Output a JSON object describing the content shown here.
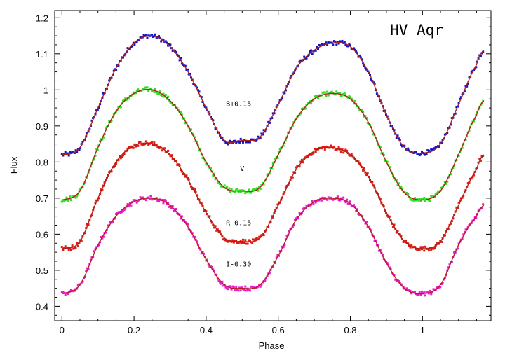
{
  "chart_data": {
    "type": "scatter",
    "title": "HV Aqr",
    "xlabel": "Phase",
    "ylabel": "Flux",
    "xlim": [
      -0.02,
      1.19
    ],
    "ylim": [
      0.36,
      1.22
    ],
    "x_ticks": [
      "0",
      "0.2",
      "0.4",
      "0.6",
      "0.8",
      "1"
    ],
    "x_tick_values": [
      0,
      0.2,
      0.4,
      0.6,
      0.8,
      1.0
    ],
    "y_ticks": [
      "0.4",
      "0.5",
      "0.6",
      "0.7",
      "0.8",
      "0.9",
      "1",
      "1.1",
      "1.2"
    ],
    "y_tick_values": [
      0.4,
      0.5,
      0.6,
      0.7,
      0.8,
      0.9,
      1.0,
      1.1,
      1.2
    ],
    "grid": false,
    "series": [
      {
        "name": "B+0.15",
        "color": "#1515c8",
        "x": [
          0,
          0.05,
          0.1,
          0.15,
          0.2,
          0.25,
          0.3,
          0.35,
          0.4,
          0.45,
          0.5,
          0.55,
          0.6,
          0.65,
          0.7,
          0.75,
          0.8,
          0.85,
          0.9,
          0.95,
          1.0,
          1.05,
          1.1,
          1.15,
          1.17
        ],
        "y": [
          0.82,
          0.84,
          0.95,
          1.06,
          1.13,
          1.15,
          1.12,
          1.05,
          0.95,
          0.86,
          0.86,
          0.87,
          0.96,
          1.06,
          1.11,
          1.13,
          1.12,
          1.05,
          0.93,
          0.84,
          0.825,
          0.85,
          0.96,
          1.07,
          1.11
        ]
      },
      {
        "name": "V",
        "color": "#33dd22",
        "x": [
          0,
          0.05,
          0.1,
          0.15,
          0.2,
          0.25,
          0.3,
          0.35,
          0.4,
          0.45,
          0.5,
          0.55,
          0.6,
          0.65,
          0.7,
          0.75,
          0.8,
          0.85,
          0.9,
          0.95,
          1.0,
          1.05,
          1.1,
          1.15,
          1.17
        ],
        "y": [
          0.695,
          0.72,
          0.84,
          0.94,
          0.99,
          1.0,
          0.97,
          0.9,
          0.8,
          0.73,
          0.72,
          0.73,
          0.82,
          0.92,
          0.975,
          0.99,
          0.975,
          0.91,
          0.8,
          0.715,
          0.695,
          0.72,
          0.82,
          0.93,
          0.97
        ]
      },
      {
        "name": "R-0.15",
        "color": "#e01a10",
        "x": [
          0,
          0.05,
          0.1,
          0.15,
          0.2,
          0.25,
          0.3,
          0.35,
          0.4,
          0.45,
          0.5,
          0.55,
          0.6,
          0.65,
          0.7,
          0.75,
          0.8,
          0.85,
          0.9,
          0.95,
          1.0,
          1.05,
          1.1,
          1.15,
          1.17
        ],
        "y": [
          0.56,
          0.58,
          0.7,
          0.8,
          0.845,
          0.85,
          0.82,
          0.75,
          0.66,
          0.59,
          0.58,
          0.59,
          0.68,
          0.78,
          0.83,
          0.84,
          0.82,
          0.76,
          0.66,
          0.58,
          0.56,
          0.58,
          0.68,
          0.78,
          0.82
        ]
      },
      {
        "name": "I-0.30",
        "color": "#ee1ad0",
        "x": [
          0,
          0.05,
          0.1,
          0.15,
          0.2,
          0.25,
          0.3,
          0.35,
          0.4,
          0.45,
          0.5,
          0.55,
          0.6,
          0.65,
          0.7,
          0.75,
          0.8,
          0.85,
          0.9,
          0.95,
          1.0,
          1.05,
          1.1,
          1.15,
          1.17
        ],
        "y": [
          0.435,
          0.46,
          0.57,
          0.65,
          0.69,
          0.7,
          0.68,
          0.62,
          0.53,
          0.46,
          0.45,
          0.46,
          0.54,
          0.64,
          0.69,
          0.7,
          0.685,
          0.62,
          0.52,
          0.45,
          0.435,
          0.46,
          0.57,
          0.65,
          0.68
        ]
      }
    ],
    "fit_color": "#b0201a",
    "series_labels": [
      {
        "text": "B+0.15",
        "x": 0.49,
        "y": 0.955
      },
      {
        "text": "V",
        "x": 0.5,
        "y": 0.775
      },
      {
        "text": "R-0.15",
        "x": 0.49,
        "y": 0.625
      },
      {
        "text": "I-0.30",
        "x": 0.49,
        "y": 0.51
      }
    ]
  }
}
